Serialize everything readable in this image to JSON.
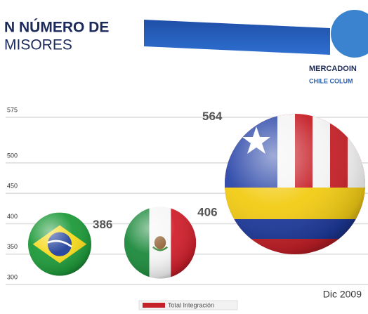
{
  "chart_data": {
    "type": "bubble",
    "title": "N NÚMERO DE",
    "subtitle": "MISORES",
    "values": [
      386,
      406,
      564
    ],
    "ylim": [
      300,
      575
    ],
    "yticks": [
      300,
      350,
      400,
      450,
      500,
      575
    ],
    "grid": true,
    "annotations": [
      "MERCADOIN",
      "CHILE COLUM",
      "Dic 2009",
      "Total Integración"
    ]
  }
}
